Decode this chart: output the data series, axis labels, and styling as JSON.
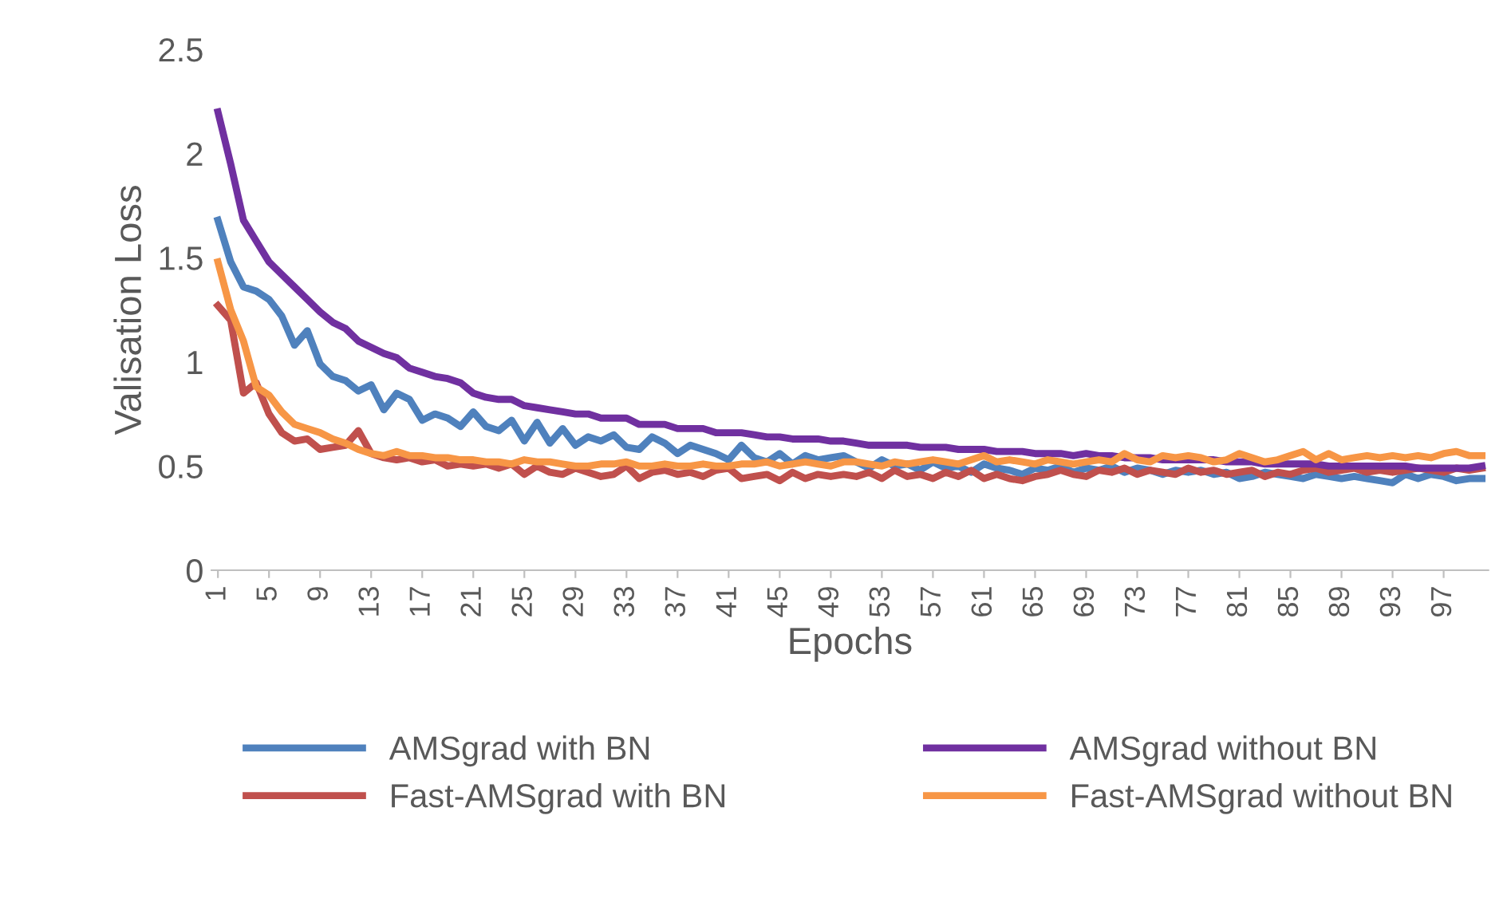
{
  "chart_data": {
    "type": "line",
    "xlabel": "Epochs",
    "ylabel": "Valisation Loss",
    "categories": [
      "1",
      null,
      null,
      null,
      "5",
      null,
      null,
      null,
      "9",
      null,
      null,
      null,
      "13",
      null,
      null,
      null,
      "17",
      null,
      null,
      null,
      "21",
      null,
      null,
      null,
      "25",
      null,
      null,
      null,
      "29",
      null,
      null,
      null,
      "33",
      null,
      null,
      null,
      "37",
      null,
      null,
      null,
      "41",
      null,
      null,
      null,
      "45",
      null,
      null,
      null,
      "49",
      null,
      null,
      null,
      "53",
      null,
      null,
      null,
      "57",
      null,
      null,
      null,
      "61",
      null,
      null,
      null,
      "65",
      null,
      null,
      null,
      "69",
      null,
      null,
      null,
      "73",
      null,
      null,
      null,
      "77",
      null,
      null,
      null,
      "81",
      null,
      null,
      null,
      "85",
      null,
      null,
      null,
      "89",
      null,
      null,
      null,
      "93",
      null,
      null,
      null,
      "97",
      null,
      null,
      null
    ],
    "ylim": [
      0,
      2.5
    ],
    "yticks": [
      {
        "value": 0,
        "label": "0"
      },
      {
        "value": 0.5,
        "label": "0.5"
      },
      {
        "value": 1,
        "label": "1"
      },
      {
        "value": 1.5,
        "label": "1.5"
      },
      {
        "value": 2,
        "label": "2"
      },
      {
        "value": 2.5,
        "label": "2.5"
      }
    ],
    "grid": false,
    "legend": "bottom",
    "marker": "none",
    "line_style": "solid",
    "series": [
      {
        "name": "AMSgrad with BN",
        "color": "#4f81bd",
        "values": [
          1.68,
          1.48,
          1.36,
          1.34,
          1.3,
          1.22,
          1.08,
          1.15,
          0.99,
          0.93,
          0.91,
          0.86,
          0.89,
          0.77,
          0.85,
          0.82,
          0.72,
          0.75,
          0.73,
          0.69,
          0.76,
          0.69,
          0.67,
          0.72,
          0.62,
          0.71,
          0.61,
          0.68,
          0.6,
          0.64,
          0.62,
          0.65,
          0.59,
          0.58,
          0.64,
          0.61,
          0.56,
          0.6,
          0.58,
          0.56,
          0.53,
          0.6,
          0.54,
          0.52,
          0.56,
          0.51,
          0.55,
          0.53,
          0.54,
          0.55,
          0.52,
          0.49,
          0.53,
          0.5,
          0.51,
          0.48,
          0.52,
          0.49,
          0.5,
          0.47,
          0.51,
          0.49,
          0.48,
          0.46,
          0.49,
          0.48,
          0.5,
          0.47,
          0.49,
          0.48,
          0.5,
          0.47,
          0.49,
          0.48,
          0.46,
          0.48,
          0.47,
          0.48,
          0.46,
          0.47,
          0.44,
          0.45,
          0.47,
          0.46,
          0.45,
          0.44,
          0.46,
          0.45,
          0.44,
          0.45,
          0.44,
          0.43,
          0.42,
          0.46,
          0.44,
          0.46,
          0.45,
          0.43,
          0.44,
          0.44
        ]
      },
      {
        "name": "Fast-AMSgrad with BN",
        "color": "#c0504d",
        "values": [
          1.27,
          1.2,
          0.85,
          0.9,
          0.75,
          0.66,
          0.62,
          0.63,
          0.58,
          0.59,
          0.6,
          0.67,
          0.56,
          0.54,
          0.53,
          0.54,
          0.52,
          0.53,
          0.5,
          0.51,
          0.5,
          0.51,
          0.49,
          0.51,
          0.46,
          0.5,
          0.47,
          0.46,
          0.49,
          0.47,
          0.45,
          0.46,
          0.5,
          0.44,
          0.47,
          0.48,
          0.46,
          0.47,
          0.45,
          0.48,
          0.49,
          0.44,
          0.45,
          0.46,
          0.43,
          0.47,
          0.44,
          0.46,
          0.45,
          0.46,
          0.45,
          0.47,
          0.44,
          0.48,
          0.45,
          0.46,
          0.44,
          0.47,
          0.45,
          0.48,
          0.44,
          0.46,
          0.44,
          0.43,
          0.45,
          0.46,
          0.48,
          0.46,
          0.45,
          0.48,
          0.47,
          0.49,
          0.46,
          0.48,
          0.47,
          0.46,
          0.49,
          0.47,
          0.48,
          0.46,
          0.47,
          0.48,
          0.45,
          0.47,
          0.46,
          0.48,
          0.49,
          0.47,
          0.48,
          0.49,
          0.47,
          0.48,
          0.47,
          0.48,
          0.49,
          0.48,
          0.47,
          0.49,
          0.48,
          0.49
        ]
      },
      {
        "name": "AMSgrad without BN",
        "color": "#7030a0",
        "values": [
          2.2,
          1.95,
          1.68,
          1.58,
          1.48,
          1.42,
          1.36,
          1.3,
          1.24,
          1.19,
          1.16,
          1.1,
          1.07,
          1.04,
          1.02,
          0.97,
          0.95,
          0.93,
          0.92,
          0.9,
          0.85,
          0.83,
          0.82,
          0.82,
          0.79,
          0.78,
          0.77,
          0.76,
          0.75,
          0.75,
          0.73,
          0.73,
          0.73,
          0.7,
          0.7,
          0.7,
          0.68,
          0.68,
          0.68,
          0.66,
          0.66,
          0.66,
          0.65,
          0.64,
          0.64,
          0.63,
          0.63,
          0.63,
          0.62,
          0.62,
          0.61,
          0.6,
          0.6,
          0.6,
          0.6,
          0.59,
          0.59,
          0.59,
          0.58,
          0.58,
          0.58,
          0.57,
          0.57,
          0.57,
          0.56,
          0.56,
          0.56,
          0.55,
          0.56,
          0.55,
          0.55,
          0.54,
          0.54,
          0.54,
          0.53,
          0.53,
          0.53,
          0.53,
          0.53,
          0.52,
          0.52,
          0.52,
          0.51,
          0.51,
          0.51,
          0.51,
          0.51,
          0.5,
          0.5,
          0.5,
          0.5,
          0.5,
          0.5,
          0.5,
          0.49,
          0.49,
          0.49,
          0.49,
          0.49,
          0.5
        ]
      },
      {
        "name": "Fast-AMSgrad without BN",
        "color": "#f79646",
        "values": [
          1.48,
          1.25,
          1.1,
          0.88,
          0.84,
          0.76,
          0.7,
          0.68,
          0.66,
          0.63,
          0.61,
          0.58,
          0.56,
          0.55,
          0.57,
          0.55,
          0.55,
          0.54,
          0.54,
          0.53,
          0.53,
          0.52,
          0.52,
          0.51,
          0.53,
          0.52,
          0.52,
          0.51,
          0.5,
          0.5,
          0.51,
          0.51,
          0.52,
          0.5,
          0.5,
          0.51,
          0.5,
          0.5,
          0.51,
          0.5,
          0.5,
          0.51,
          0.51,
          0.52,
          0.5,
          0.51,
          0.52,
          0.51,
          0.5,
          0.52,
          0.52,
          0.51,
          0.5,
          0.52,
          0.51,
          0.52,
          0.53,
          0.52,
          0.51,
          0.53,
          0.55,
          0.52,
          0.53,
          0.52,
          0.51,
          0.53,
          0.52,
          0.51,
          0.52,
          0.53,
          0.52,
          0.56,
          0.53,
          0.52,
          0.55,
          0.54,
          0.55,
          0.54,
          0.52,
          0.53,
          0.56,
          0.54,
          0.52,
          0.53,
          0.55,
          0.57,
          0.53,
          0.56,
          0.53,
          0.54,
          0.55,
          0.54,
          0.55,
          0.54,
          0.55,
          0.54,
          0.56,
          0.57,
          0.55,
          0.55
        ]
      }
    ]
  }
}
